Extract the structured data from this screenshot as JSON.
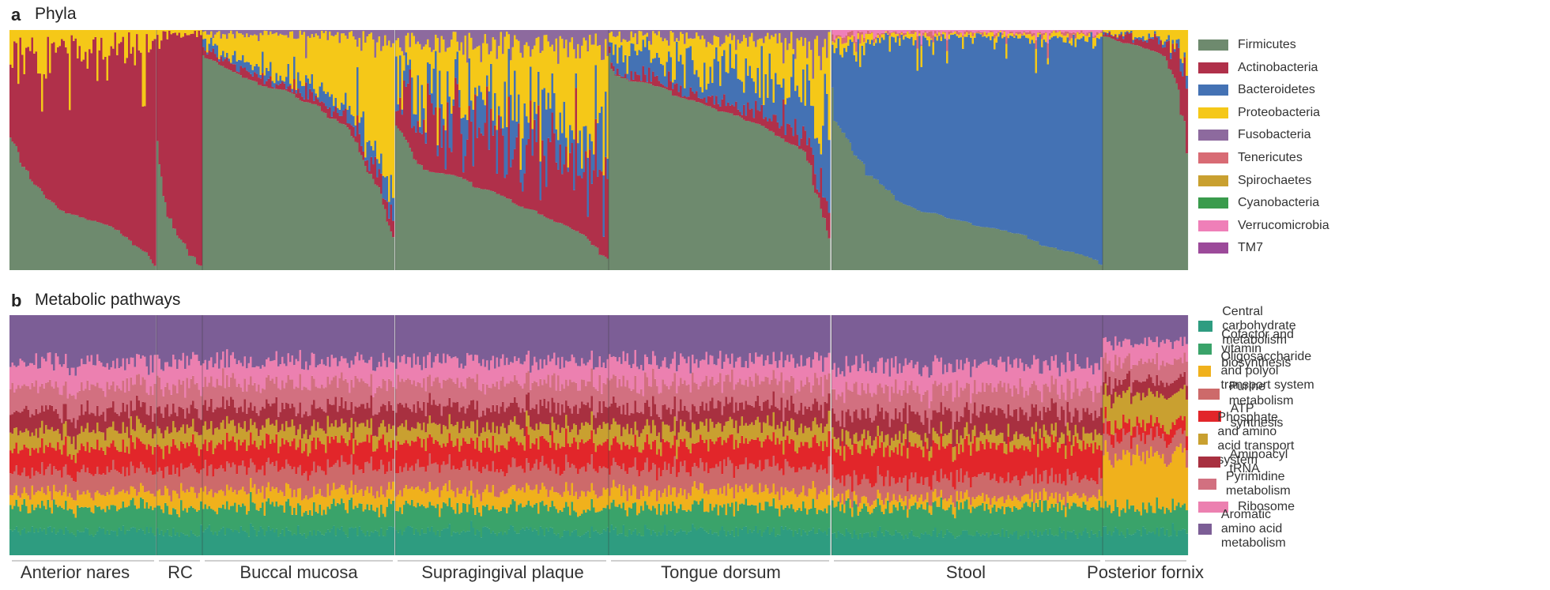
{
  "panel_a": {
    "letter": "a",
    "title": "Phyla"
  },
  "panel_b": {
    "letter": "b",
    "title": "Metabolic pathways"
  },
  "chart_data": [
    {
      "type": "bar",
      "stacked": true,
      "title": "Phyla",
      "xlabel": "",
      "ylabel": "",
      "ylim": [
        0,
        1
      ],
      "grid": false,
      "legend_position": "right",
      "categories": [
        "Anterior nares",
        "RC",
        "Buccal mucosa",
        "Supragingival plaque",
        "Tongue dorsum",
        "Stool",
        "Posterior fornix"
      ],
      "series": [
        {
          "name": "Firmicutes",
          "color": "#6e8a6e",
          "values": [
            0.22,
            0.12,
            0.72,
            0.28,
            0.66,
            0.22,
            0.92
          ]
        },
        {
          "name": "Actinobacteria",
          "color": "#b0304a",
          "values": [
            0.68,
            0.86,
            0.03,
            0.26,
            0.04,
            0.0,
            0.04
          ]
        },
        {
          "name": "Bacteroidetes",
          "color": "#4472b4",
          "values": [
            0.0,
            0.0,
            0.04,
            0.14,
            0.13,
            0.74,
            0.01
          ]
        },
        {
          "name": "Proteobacteria",
          "color": "#f5c818",
          "values": [
            0.1,
            0.02,
            0.19,
            0.26,
            0.13,
            0.02,
            0.03
          ]
        },
        {
          "name": "Fusobacteria",
          "color": "#8d6a9e",
          "values": [
            0.0,
            0.0,
            0.02,
            0.06,
            0.04,
            0.0,
            0.0
          ]
        },
        {
          "name": "Tenericutes",
          "color": "#d86b74",
          "values": [
            0.0,
            0.0,
            0.0,
            0.0,
            0.0,
            0.01,
            0.0
          ]
        },
        {
          "name": "Spirochaetes",
          "color": "#c9a030",
          "values": [
            0.0,
            0.0,
            0.0,
            0.0,
            0.0,
            0.0,
            0.0
          ]
        },
        {
          "name": "Cyanobacteria",
          "color": "#3a9b4c",
          "values": [
            0.0,
            0.0,
            0.0,
            0.0,
            0.0,
            0.0,
            0.0
          ]
        },
        {
          "name": "Verrucomicrobia",
          "color": "#ef7fb8",
          "values": [
            0.0,
            0.0,
            0.0,
            0.0,
            0.0,
            0.01,
            0.0
          ]
        },
        {
          "name": "TM7",
          "color": "#9c4a9a",
          "values": [
            0.0,
            0.0,
            0.0,
            0.0,
            0.0,
            0.0,
            0.0
          ]
        }
      ]
    },
    {
      "type": "bar",
      "stacked": true,
      "title": "Metabolic pathways",
      "xlabel": "",
      "ylabel": "",
      "ylim": [
        0,
        1
      ],
      "grid": false,
      "legend_position": "right",
      "categories": [
        "Anterior nares",
        "RC",
        "Buccal mucosa",
        "Supragingival plaque",
        "Tongue dorsum",
        "Stool",
        "Posterior fornix"
      ],
      "series": [
        {
          "name": "Central carbohydrate metabolism",
          "color": "#2e9c80",
          "values": [
            0.1,
            0.1,
            0.1,
            0.1,
            0.1,
            0.09,
            0.1
          ]
        },
        {
          "name": "Cofactor and vitamin biosynthesis",
          "color": "#3aa36a",
          "values": [
            0.1,
            0.1,
            0.1,
            0.1,
            0.1,
            0.11,
            0.1
          ]
        },
        {
          "name": "Oligosaccharide and polyol transport system",
          "color": "#f0b11c",
          "values": [
            0.06,
            0.07,
            0.07,
            0.07,
            0.07,
            0.04,
            0.22
          ]
        },
        {
          "name": "Purine metabolism",
          "color": "#cd6a6a",
          "values": [
            0.09,
            0.09,
            0.1,
            0.1,
            0.1,
            0.08,
            0.08
          ]
        },
        {
          "name": "ATP synthesis",
          "color": "#e2262a",
          "values": [
            0.1,
            0.1,
            0.1,
            0.1,
            0.1,
            0.13,
            0.05
          ]
        },
        {
          "name": "Phosphate and amino acid transport system",
          "color": "#c9a030",
          "values": [
            0.07,
            0.07,
            0.07,
            0.07,
            0.07,
            0.05,
            0.12
          ]
        },
        {
          "name": "Aminoacyl tRNA",
          "color": "#a83040",
          "values": [
            0.08,
            0.08,
            0.08,
            0.08,
            0.08,
            0.09,
            0.06
          ]
        },
        {
          "name": "Pyrimidine metabolism",
          "color": "#d27080",
          "values": [
            0.1,
            0.1,
            0.1,
            0.1,
            0.1,
            0.1,
            0.08
          ]
        },
        {
          "name": "Ribosome",
          "color": "#ec80b0",
          "values": [
            0.1,
            0.1,
            0.09,
            0.09,
            0.09,
            0.1,
            0.08
          ]
        },
        {
          "name": "Aromatic amino acid metabolism",
          "color": "#7c5e96",
          "values": [
            0.2,
            0.19,
            0.19,
            0.19,
            0.19,
            0.21,
            0.11
          ]
        }
      ]
    }
  ]
}
